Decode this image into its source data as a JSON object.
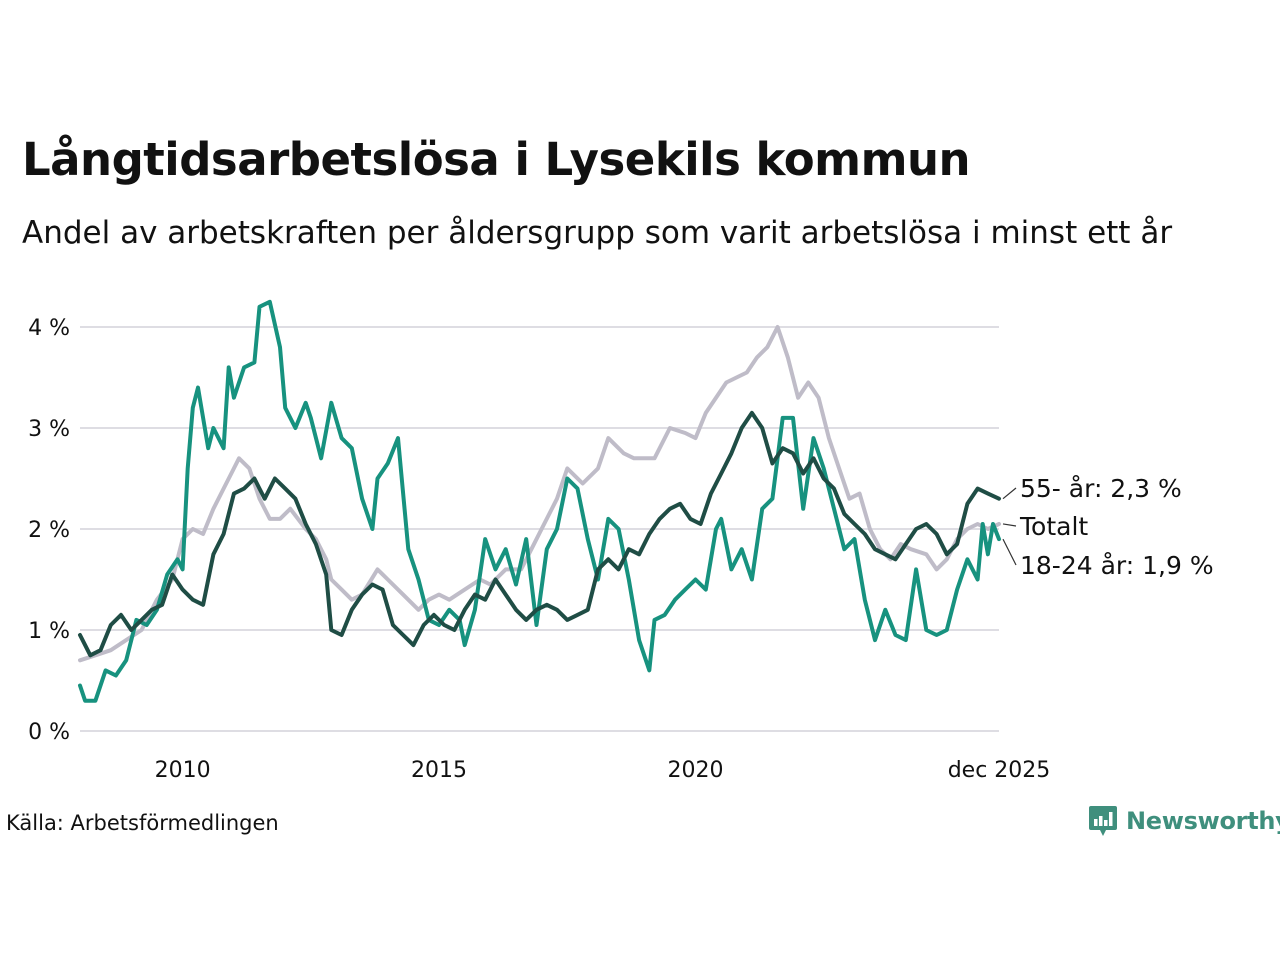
{
  "title": "Långtidsarbetslösa i Lysekils kommun",
  "subtitle": "Andel av arbetskraften per åldersgrupp som varit arbetslösa i minst ett år",
  "source": "Källa: Arbetsförmedlingen",
  "brand": "Newsworthy",
  "colors": {
    "total": "#bfbcc8",
    "age55": "#1f4d45",
    "age1824": "#17927f",
    "grid": "#dedde3",
    "brand": "#3f8f7d"
  },
  "chart_data": {
    "type": "line",
    "title": "Långtidsarbetslösa i Lysekils kommun",
    "subtitle": "Andel av arbetskraften per åldersgrupp som varit arbetslösa i minst ett år",
    "xlabel": "",
    "ylabel": "",
    "xlim": [
      2008.0,
      2025.917
    ],
    "ylim": [
      0,
      4.3
    ],
    "grid": true,
    "x_ticks": [
      {
        "value": 2010,
        "label": "2010"
      },
      {
        "value": 2015,
        "label": "2015"
      },
      {
        "value": 2020,
        "label": "2020"
      },
      {
        "value": 2025.917,
        "label": "dec 2025"
      }
    ],
    "y_ticks": [
      {
        "value": 0,
        "label": "0 %"
      },
      {
        "value": 1,
        "label": "1 %"
      },
      {
        "value": 2,
        "label": "2 %"
      },
      {
        "value": 3,
        "label": "3 %"
      },
      {
        "value": 4,
        "label": "4 %"
      }
    ],
    "series": [
      {
        "key": "total",
        "name": "Totalt",
        "end_label": "Totalt",
        "points": [
          [
            2008.0,
            0.7
          ],
          [
            2008.3,
            0.75
          ],
          [
            2008.6,
            0.8
          ],
          [
            2008.9,
            0.9
          ],
          [
            2009.2,
            1.0
          ],
          [
            2009.5,
            1.3
          ],
          [
            2009.8,
            1.5
          ],
          [
            2010.0,
            1.9
          ],
          [
            2010.2,
            2.0
          ],
          [
            2010.4,
            1.95
          ],
          [
            2010.6,
            2.2
          ],
          [
            2010.8,
            2.4
          ],
          [
            2011.0,
            2.6
          ],
          [
            2011.1,
            2.7
          ],
          [
            2011.3,
            2.6
          ],
          [
            2011.5,
            2.3
          ],
          [
            2011.7,
            2.1
          ],
          [
            2011.9,
            2.1
          ],
          [
            2012.1,
            2.2
          ],
          [
            2012.4,
            2.0
          ],
          [
            2012.6,
            1.9
          ],
          [
            2012.8,
            1.7
          ],
          [
            2012.9,
            1.5
          ],
          [
            2013.1,
            1.4
          ],
          [
            2013.3,
            1.3
          ],
          [
            2013.5,
            1.35
          ],
          [
            2013.8,
            1.6
          ],
          [
            2014.0,
            1.5
          ],
          [
            2014.3,
            1.35
          ],
          [
            2014.6,
            1.2
          ],
          [
            2014.8,
            1.3
          ],
          [
            2015.0,
            1.35
          ],
          [
            2015.2,
            1.3
          ],
          [
            2015.5,
            1.4
          ],
          [
            2015.8,
            1.5
          ],
          [
            2016.0,
            1.45
          ],
          [
            2016.3,
            1.6
          ],
          [
            2016.6,
            1.6
          ],
          [
            2016.8,
            1.8
          ],
          [
            2017.0,
            2.0
          ],
          [
            2017.3,
            2.3
          ],
          [
            2017.5,
            2.6
          ],
          [
            2017.8,
            2.45
          ],
          [
            2018.1,
            2.6
          ],
          [
            2018.3,
            2.9
          ],
          [
            2018.6,
            2.75
          ],
          [
            2018.8,
            2.7
          ],
          [
            2019.0,
            2.7
          ],
          [
            2019.2,
            2.7
          ],
          [
            2019.5,
            3.0
          ],
          [
            2019.8,
            2.95
          ],
          [
            2020.0,
            2.9
          ],
          [
            2020.2,
            3.15
          ],
          [
            2020.4,
            3.3
          ],
          [
            2020.6,
            3.45
          ],
          [
            2020.8,
            3.5
          ],
          [
            2021.0,
            3.55
          ],
          [
            2021.2,
            3.7
          ],
          [
            2021.4,
            3.8
          ],
          [
            2021.6,
            4.0
          ],
          [
            2021.8,
            3.7
          ],
          [
            2022.0,
            3.3
          ],
          [
            2022.2,
            3.45
          ],
          [
            2022.4,
            3.3
          ],
          [
            2022.6,
            2.9
          ],
          [
            2022.8,
            2.6
          ],
          [
            2023.0,
            2.3
          ],
          [
            2023.2,
            2.35
          ],
          [
            2023.4,
            2.0
          ],
          [
            2023.6,
            1.8
          ],
          [
            2023.8,
            1.7
          ],
          [
            2024.0,
            1.85
          ],
          [
            2024.2,
            1.8
          ],
          [
            2024.5,
            1.75
          ],
          [
            2024.7,
            1.6
          ],
          [
            2024.9,
            1.7
          ],
          [
            2025.1,
            1.9
          ],
          [
            2025.3,
            2.0
          ],
          [
            2025.5,
            2.05
          ],
          [
            2025.7,
            2.0
          ],
          [
            2025.917,
            2.05
          ]
        ]
      },
      {
        "key": "age55",
        "name": "55- år",
        "end_label": "55- år: 2,3 %",
        "points": [
          [
            2008.0,
            0.95
          ],
          [
            2008.2,
            0.75
          ],
          [
            2008.4,
            0.8
          ],
          [
            2008.6,
            1.05
          ],
          [
            2008.8,
            1.15
          ],
          [
            2009.0,
            1.0
          ],
          [
            2009.2,
            1.1
          ],
          [
            2009.4,
            1.2
          ],
          [
            2009.6,
            1.25
          ],
          [
            2009.8,
            1.55
          ],
          [
            2010.0,
            1.4
          ],
          [
            2010.2,
            1.3
          ],
          [
            2010.4,
            1.25
          ],
          [
            2010.6,
            1.75
          ],
          [
            2010.8,
            1.95
          ],
          [
            2011.0,
            2.35
          ],
          [
            2011.2,
            2.4
          ],
          [
            2011.4,
            2.5
          ],
          [
            2011.5,
            2.4
          ],
          [
            2011.6,
            2.3
          ],
          [
            2011.8,
            2.5
          ],
          [
            2012.0,
            2.4
          ],
          [
            2012.2,
            2.3
          ],
          [
            2012.4,
            2.05
          ],
          [
            2012.6,
            1.85
          ],
          [
            2012.8,
            1.55
          ],
          [
            2012.9,
            1.0
          ],
          [
            2013.1,
            0.95
          ],
          [
            2013.3,
            1.2
          ],
          [
            2013.5,
            1.35
          ],
          [
            2013.7,
            1.45
          ],
          [
            2013.9,
            1.4
          ],
          [
            2014.1,
            1.05
          ],
          [
            2014.3,
            0.95
          ],
          [
            2014.5,
            0.85
          ],
          [
            2014.7,
            1.05
          ],
          [
            2014.9,
            1.15
          ],
          [
            2015.1,
            1.05
          ],
          [
            2015.3,
            1.0
          ],
          [
            2015.5,
            1.2
          ],
          [
            2015.7,
            1.35
          ],
          [
            2015.9,
            1.3
          ],
          [
            2016.1,
            1.5
          ],
          [
            2016.3,
            1.35
          ],
          [
            2016.5,
            1.2
          ],
          [
            2016.7,
            1.1
          ],
          [
            2016.9,
            1.2
          ],
          [
            2017.1,
            1.25
          ],
          [
            2017.3,
            1.2
          ],
          [
            2017.5,
            1.1
          ],
          [
            2017.7,
            1.15
          ],
          [
            2017.9,
            1.2
          ],
          [
            2018.1,
            1.6
          ],
          [
            2018.3,
            1.7
          ],
          [
            2018.5,
            1.6
          ],
          [
            2018.7,
            1.8
          ],
          [
            2018.9,
            1.75
          ],
          [
            2019.1,
            1.95
          ],
          [
            2019.3,
            2.1
          ],
          [
            2019.5,
            2.2
          ],
          [
            2019.7,
            2.25
          ],
          [
            2019.9,
            2.1
          ],
          [
            2020.1,
            2.05
          ],
          [
            2020.3,
            2.35
          ],
          [
            2020.5,
            2.55
          ],
          [
            2020.7,
            2.75
          ],
          [
            2020.9,
            3.0
          ],
          [
            2021.1,
            3.15
          ],
          [
            2021.3,
            3.0
          ],
          [
            2021.5,
            2.65
          ],
          [
            2021.7,
            2.8
          ],
          [
            2021.9,
            2.75
          ],
          [
            2022.1,
            2.55
          ],
          [
            2022.3,
            2.7
          ],
          [
            2022.5,
            2.5
          ],
          [
            2022.7,
            2.4
          ],
          [
            2022.9,
            2.15
          ],
          [
            2023.1,
            2.05
          ],
          [
            2023.3,
            1.95
          ],
          [
            2023.5,
            1.8
          ],
          [
            2023.7,
            1.75
          ],
          [
            2023.9,
            1.7
          ],
          [
            2024.1,
            1.85
          ],
          [
            2024.3,
            2.0
          ],
          [
            2024.5,
            2.05
          ],
          [
            2024.7,
            1.95
          ],
          [
            2024.9,
            1.75
          ],
          [
            2025.1,
            1.85
          ],
          [
            2025.3,
            2.25
          ],
          [
            2025.5,
            2.4
          ],
          [
            2025.7,
            2.35
          ],
          [
            2025.917,
            2.3
          ]
        ]
      },
      {
        "key": "age1824",
        "name": "18-24 år",
        "end_label": "18-24 år: 1,9 %",
        "points": [
          [
            2008.0,
            0.45
          ],
          [
            2008.1,
            0.3
          ],
          [
            2008.3,
            0.3
          ],
          [
            2008.5,
            0.6
          ],
          [
            2008.7,
            0.55
          ],
          [
            2008.9,
            0.7
          ],
          [
            2009.1,
            1.1
          ],
          [
            2009.3,
            1.05
          ],
          [
            2009.5,
            1.2
          ],
          [
            2009.7,
            1.55
          ],
          [
            2009.9,
            1.7
          ],
          [
            2010.0,
            1.6
          ],
          [
            2010.1,
            2.6
          ],
          [
            2010.2,
            3.2
          ],
          [
            2010.3,
            3.4
          ],
          [
            2010.5,
            2.8
          ],
          [
            2010.6,
            3.0
          ],
          [
            2010.8,
            2.8
          ],
          [
            2010.9,
            3.6
          ],
          [
            2011.0,
            3.3
          ],
          [
            2011.2,
            3.6
          ],
          [
            2011.4,
            3.65
          ],
          [
            2011.5,
            4.2
          ],
          [
            2011.7,
            4.25
          ],
          [
            2011.9,
            3.8
          ],
          [
            2012.0,
            3.2
          ],
          [
            2012.2,
            3.0
          ],
          [
            2012.4,
            3.25
          ],
          [
            2012.5,
            3.1
          ],
          [
            2012.7,
            2.7
          ],
          [
            2012.9,
            3.25
          ],
          [
            2013.1,
            2.9
          ],
          [
            2013.3,
            2.8
          ],
          [
            2013.5,
            2.3
          ],
          [
            2013.7,
            2.0
          ],
          [
            2013.8,
            2.5
          ],
          [
            2014.0,
            2.65
          ],
          [
            2014.2,
            2.9
          ],
          [
            2014.4,
            1.8
          ],
          [
            2014.6,
            1.5
          ],
          [
            2014.8,
            1.1
          ],
          [
            2015.0,
            1.05
          ],
          [
            2015.2,
            1.2
          ],
          [
            2015.4,
            1.1
          ],
          [
            2015.5,
            0.85
          ],
          [
            2015.7,
            1.2
          ],
          [
            2015.9,
            1.9
          ],
          [
            2016.1,
            1.6
          ],
          [
            2016.3,
            1.8
          ],
          [
            2016.5,
            1.45
          ],
          [
            2016.7,
            1.9
          ],
          [
            2016.9,
            1.05
          ],
          [
            2017.1,
            1.8
          ],
          [
            2017.3,
            2.0
          ],
          [
            2017.5,
            2.5
          ],
          [
            2017.7,
            2.4
          ],
          [
            2017.9,
            1.9
          ],
          [
            2018.1,
            1.5
          ],
          [
            2018.3,
            2.1
          ],
          [
            2018.5,
            2.0
          ],
          [
            2018.7,
            1.5
          ],
          [
            2018.9,
            0.9
          ],
          [
            2019.1,
            0.6
          ],
          [
            2019.2,
            1.1
          ],
          [
            2019.4,
            1.15
          ],
          [
            2019.6,
            1.3
          ],
          [
            2019.8,
            1.4
          ],
          [
            2020.0,
            1.5
          ],
          [
            2020.2,
            1.4
          ],
          [
            2020.4,
            2.0
          ],
          [
            2020.5,
            2.1
          ],
          [
            2020.7,
            1.6
          ],
          [
            2020.9,
            1.8
          ],
          [
            2021.1,
            1.5
          ],
          [
            2021.3,
            2.2
          ],
          [
            2021.5,
            2.3
          ],
          [
            2021.7,
            3.1
          ],
          [
            2021.9,
            3.1
          ],
          [
            2022.1,
            2.2
          ],
          [
            2022.3,
            2.9
          ],
          [
            2022.5,
            2.6
          ],
          [
            2022.7,
            2.2
          ],
          [
            2022.9,
            1.8
          ],
          [
            2023.1,
            1.9
          ],
          [
            2023.3,
            1.3
          ],
          [
            2023.5,
            0.9
          ],
          [
            2023.7,
            1.2
          ],
          [
            2023.9,
            0.95
          ],
          [
            2024.1,
            0.9
          ],
          [
            2024.3,
            1.6
          ],
          [
            2024.5,
            1.0
          ],
          [
            2024.7,
            0.95
          ],
          [
            2024.9,
            1.0
          ],
          [
            2025.1,
            1.4
          ],
          [
            2025.3,
            1.7
          ],
          [
            2025.5,
            1.5
          ],
          [
            2025.6,
            2.05
          ],
          [
            2025.7,
            1.75
          ],
          [
            2025.8,
            2.05
          ],
          [
            2025.917,
            1.9
          ]
        ]
      }
    ]
  }
}
